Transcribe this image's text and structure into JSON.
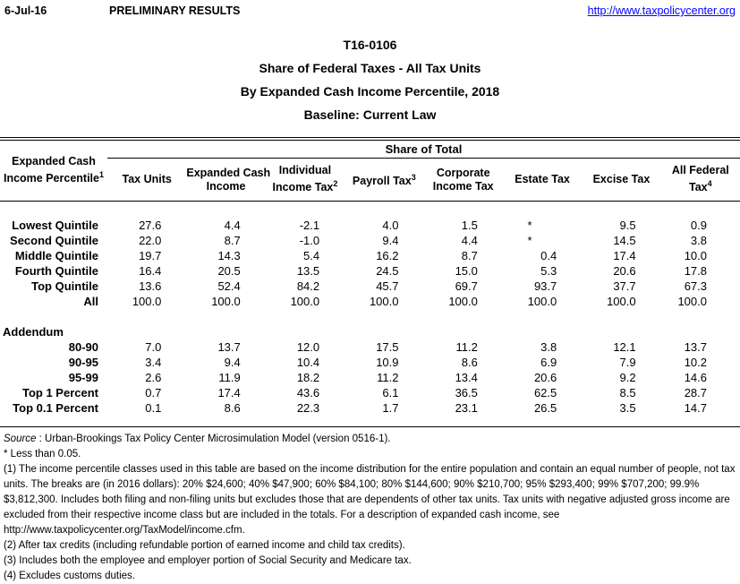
{
  "page": {
    "date": "6-Jul-16",
    "preliminary": "PRELIMINARY RESULTS",
    "link": "http://www.taxpolicycenter.org",
    "link_color": "#0000ff"
  },
  "titles": [
    "T16-0106",
    "Share of Federal Taxes - All Tax Units",
    "By Expanded Cash Income Percentile, 2018",
    "Baseline: Current Law"
  ],
  "table": {
    "span_header": "Share of Total",
    "row_header": {
      "lines": [
        "Expanded Cash",
        "Income Percentile"
      ],
      "sup": "1"
    },
    "columns": [
      {
        "lines": [
          "Tax Units"
        ],
        "sup": ""
      },
      {
        "lines": [
          "Expanded Cash",
          "Income"
        ],
        "sup": ""
      },
      {
        "lines": [
          "Individual",
          "Income Tax"
        ],
        "sup": "2"
      },
      {
        "lines": [
          "Payroll Tax"
        ],
        "sup": "3"
      },
      {
        "lines": [
          "Corporate",
          "Income Tax"
        ],
        "sup": ""
      },
      {
        "lines": [
          "Estate Tax"
        ],
        "sup": ""
      },
      {
        "lines": [
          "Excise Tax"
        ],
        "sup": ""
      },
      {
        "lines": [
          "All Federal",
          "Tax"
        ],
        "sup": "4"
      }
    ],
    "rows": [
      {
        "label": "Lowest Quintile",
        "values": [
          "27.6",
          "4.4",
          "-2.1",
          "4.0",
          "1.5",
          "*",
          "9.5",
          "0.9"
        ]
      },
      {
        "label": "Second Quintile",
        "values": [
          "22.0",
          "8.7",
          "-1.0",
          "9.4",
          "4.4",
          "*",
          "14.5",
          "3.8"
        ]
      },
      {
        "label": "Middle Quintile",
        "values": [
          "19.7",
          "14.3",
          "5.4",
          "16.2",
          "8.7",
          "0.4",
          "17.4",
          "10.0"
        ]
      },
      {
        "label": "Fourth Quintile",
        "values": [
          "16.4",
          "20.5",
          "13.5",
          "24.5",
          "15.0",
          "5.3",
          "20.6",
          "17.8"
        ]
      },
      {
        "label": "Top Quintile",
        "values": [
          "13.6",
          "52.4",
          "84.2",
          "45.7",
          "69.7",
          "93.7",
          "37.7",
          "67.3"
        ]
      },
      {
        "label": "All",
        "values": [
          "100.0",
          "100.0",
          "100.0",
          "100.0",
          "100.0",
          "100.0",
          "100.0",
          "100.0"
        ]
      }
    ],
    "addendum_label": "Addendum",
    "addendum_rows": [
      {
        "label": "80-90",
        "values": [
          "7.0",
          "13.7",
          "12.0",
          "17.5",
          "11.2",
          "3.8",
          "12.1",
          "13.7"
        ]
      },
      {
        "label": "90-95",
        "values": [
          "3.4",
          "9.4",
          "10.4",
          "10.9",
          "8.6",
          "6.9",
          "7.9",
          "10.2"
        ]
      },
      {
        "label": "95-99",
        "values": [
          "2.6",
          "11.9",
          "18.2",
          "11.2",
          "13.4",
          "20.6",
          "9.2",
          "14.6"
        ]
      },
      {
        "label": "Top 1 Percent",
        "values": [
          "0.7",
          "17.4",
          "43.6",
          "6.1",
          "36.5",
          "62.5",
          "8.5",
          "28.7"
        ]
      },
      {
        "label": "Top 0.1 Percent",
        "values": [
          "0.1",
          "8.6",
          "22.3",
          "1.7",
          "23.1",
          "26.5",
          "3.5",
          "14.7"
        ]
      }
    ]
  },
  "footnotes": {
    "source_label": "Source",
    "source_text": " : Urban-Brookings Tax Policy Center Microsimulation Model (version 0516-1).",
    "notes": [
      "* Less than 0.05.",
      "(1) The income percentile classes used in this table are based on the income distribution for the entire population and contain an equal number of people, not tax units. The breaks are (in 2016 dollars): 20% $24,600; 40% $47,900; 60% $84,100; 80% $144,600; 90% $210,700; 95% $293,400; 99% $707,200; 99.9% $3,812,300. Includes both filing and non-filing units but excludes those that are dependents of other tax units. Tax units with negative adjusted gross income are excluded from their respective income class but are included in the totals. For a description of expanded cash income, see http://www.taxpolicycenter.org/TaxModel/income.cfm.",
      "(2) After tax credits (including refundable portion of earned income and child tax credits).",
      "(3) Includes both the employee and employer portion of Social Security and Medicare tax.",
      "(4) Excludes customs duties."
    ]
  }
}
